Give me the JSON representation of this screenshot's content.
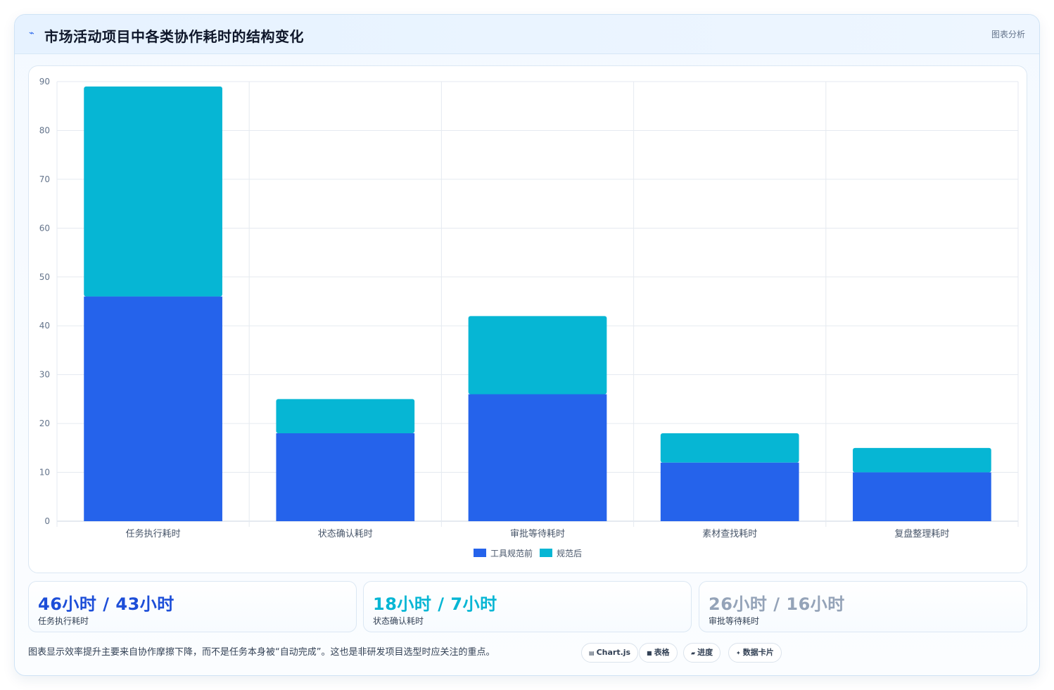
{
  "header": {
    "title": "市场活动项目中各类协作耗时的结构变化",
    "tag": "图表分析"
  },
  "chart_data": {
    "type": "bar",
    "stacked": true,
    "categories": [
      "任务执行耗时",
      "状态确认耗时",
      "审批等待耗时",
      "素材查找耗时",
      "复盘整理耗时"
    ],
    "series": [
      {
        "name": "工具规范前",
        "color": "#2563eb",
        "values": [
          46,
          18,
          26,
          12,
          10
        ]
      },
      {
        "name": "规范后",
        "color": "#06b6d4",
        "values": [
          43,
          7,
          16,
          6,
          5
        ]
      }
    ],
    "ylim": [
      0,
      90
    ],
    "yticks": [
      0,
      10,
      20,
      30,
      40,
      50,
      60,
      70,
      80,
      90
    ],
    "grid": true,
    "legend": "bottom"
  },
  "stats": [
    {
      "value": "46小时 / 43小时",
      "label": "任务执行耗时",
      "color": "#1d4ed8"
    },
    {
      "value": "18小时 / 7小时",
      "label": "状态确认耗时",
      "color": "#06b6d4"
    },
    {
      "value": "26小时 / 16小时",
      "label": "审批等待耗时",
      "color": "#94a3b8"
    }
  ],
  "note": "图表显示效率提升主要来自协作摩擦下降，而不是任务本身被“自动完成”。这也是非研发项目选型时应关注的重点。",
  "pills": [
    {
      "icon": "▤",
      "label": "Chart.js"
    },
    {
      "icon": "■",
      "label": "表格"
    },
    {
      "icon": "▰",
      "label": "进度"
    },
    {
      "icon": "✦",
      "label": "数据卡片"
    }
  ]
}
